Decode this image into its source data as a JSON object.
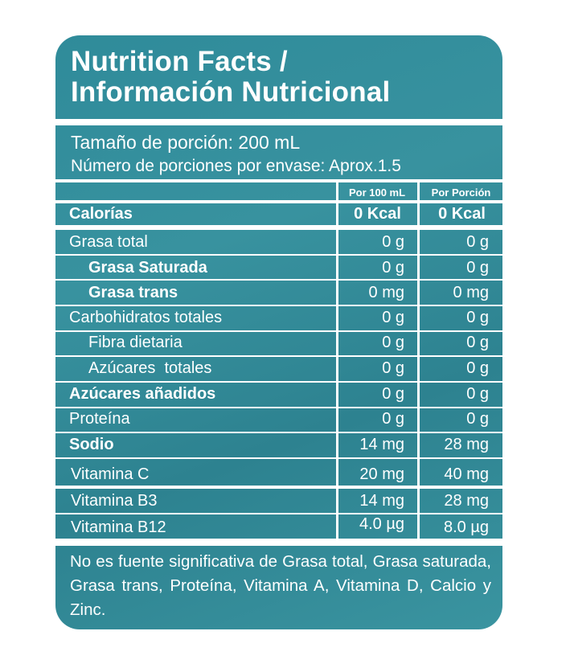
{
  "title": {
    "line1": "Nutrition Facts /",
    "line2": "Información Nutricional"
  },
  "serving": {
    "size": "Tamaño de porción: 200 mL",
    "servings": "Número de porciones por envase: Aprox.1.5"
  },
  "columns": {
    "per100": "Por 100 mL",
    "perServing": "Por Porción"
  },
  "rows": [
    {
      "label": "Calorías",
      "per100": "0 Kcal",
      "perServing": "0 Kcal"
    },
    {
      "label": "Grasa total",
      "per100": "0 g",
      "perServing": "0 g"
    },
    {
      "label": "Grasa Saturada",
      "per100": "0 g",
      "perServing": "0 g"
    },
    {
      "label": "Grasa trans",
      "per100": "0 mg",
      "perServing": "0 mg"
    },
    {
      "label": "Carbohidratos totales",
      "per100": "0 g",
      "perServing": "0 g"
    },
    {
      "label": "Fibra dietaria",
      "per100": "0 g",
      "perServing": "0 g"
    },
    {
      "label": "Azúcares  totales",
      "per100": "0 g",
      "perServing": "0 g"
    },
    {
      "label": "Azúcares añadidos",
      "per100": "0 g",
      "perServing": "0 g"
    },
    {
      "label": "Proteína",
      "per100": "0 g",
      "perServing": "0 g"
    },
    {
      "label": "Sodio",
      "per100": "14 mg",
      "perServing": "28 mg"
    },
    {
      "label": "Vitamina C",
      "per100": "20 mg",
      "perServing": "40 mg"
    },
    {
      "label": "Vitamina B3",
      "per100": "14 mg",
      "perServing": "28 mg"
    },
    {
      "label": "Vitamina B12",
      "per100": "4.0 µg",
      "perServing": "8.0 µg"
    }
  ],
  "footer": "No es fuente significativa de Grasa total, Grasa saturada, Grasa trans, Proteína, Vitamina A, Vitamina D, Calcio y Zinc.",
  "colors": {
    "panel": "#2f8b9a",
    "text": "#ffffff"
  }
}
